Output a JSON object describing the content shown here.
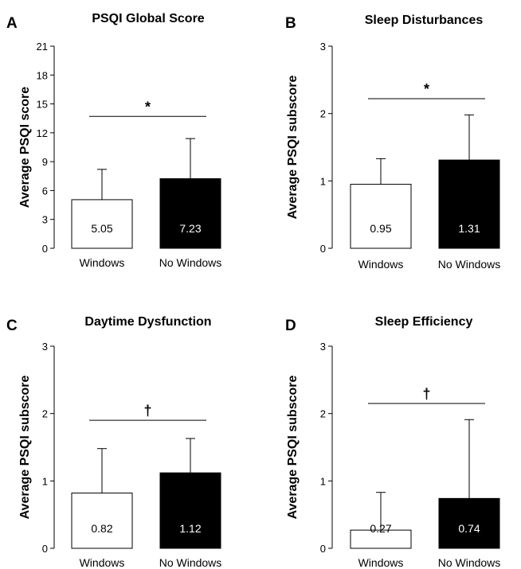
{
  "chart_data": [
    {
      "type": "bar",
      "panel": "A",
      "title": "PSQI Global Score",
      "ylabel": "Average PSQI score",
      "categories": [
        "Windows",
        "No Windows"
      ],
      "values": [
        5.05,
        7.23
      ],
      "value_labels": [
        "5.05",
        "7.23"
      ],
      "error_upper": [
        8.2,
        11.4
      ],
      "bar_colors": [
        "#ffffff",
        "#000000"
      ],
      "ylim": [
        0,
        21
      ],
      "yticks": [
        0,
        3,
        6,
        9,
        12,
        15,
        18,
        21
      ],
      "significance": "*",
      "significance_y": 13.7
    },
    {
      "type": "bar",
      "panel": "B",
      "title": "Sleep Disturbances",
      "ylabel": "Average PSQI subscore",
      "categories": [
        "Windows",
        "No Windows"
      ],
      "values": [
        0.95,
        1.31
      ],
      "value_labels": [
        "0.95",
        "1.31"
      ],
      "error_upper": [
        1.33,
        1.98
      ],
      "bar_colors": [
        "#ffffff",
        "#000000"
      ],
      "ylim": [
        0,
        3
      ],
      "yticks": [
        0,
        1,
        2,
        3
      ],
      "significance": "*",
      "significance_y": 2.22
    },
    {
      "type": "bar",
      "panel": "C",
      "title": "Daytime Dysfunction",
      "ylabel": "Average PSQI subscore",
      "categories": [
        "Windows",
        "No Windows"
      ],
      "values": [
        0.82,
        1.12
      ],
      "value_labels": [
        "0.82",
        "1.12"
      ],
      "error_upper": [
        1.48,
        1.63
      ],
      "bar_colors": [
        "#ffffff",
        "#000000"
      ],
      "ylim": [
        0,
        3
      ],
      "yticks": [
        0,
        1,
        2,
        3
      ],
      "significance": "†",
      "significance_y": 1.9
    },
    {
      "type": "bar",
      "panel": "D",
      "title": "Sleep Efficiency",
      "ylabel": "Average PSQI subscore",
      "categories": [
        "Windows",
        "No Windows"
      ],
      "values": [
        0.27,
        0.74
      ],
      "value_labels": [
        "0.27",
        "0.74"
      ],
      "error_upper": [
        0.83,
        1.91
      ],
      "bar_colors": [
        "#ffffff",
        "#000000"
      ],
      "ylim": [
        0,
        3
      ],
      "yticks": [
        0,
        1,
        2,
        3
      ],
      "significance": "†",
      "significance_y": 2.15
    }
  ]
}
